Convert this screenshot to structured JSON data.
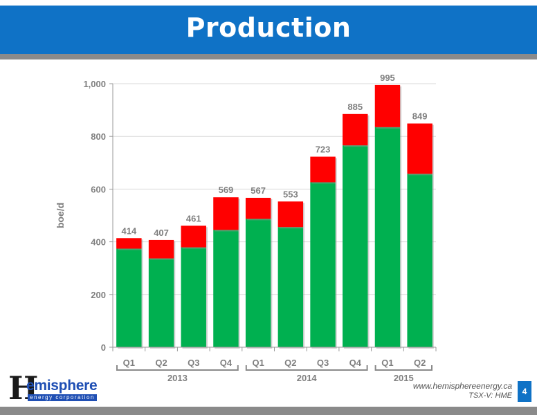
{
  "header": {
    "title": "Production"
  },
  "footer": {
    "website": "www.hemisphereenergy.ca",
    "ticker": "TSX-V: HME",
    "page_number": "4"
  },
  "logo": {
    "mark": "H",
    "word": "emisphere",
    "subtitle": "energy corporation"
  },
  "colors": {
    "title_bar": "#0f72c6",
    "base_series": "#00b050",
    "top_series": "#ff0000",
    "axis_text": "#7f7f7f"
  },
  "chart_data": {
    "type": "bar",
    "stacked": true,
    "ylabel": "boe/d",
    "ylim": [
      0,
      1000
    ],
    "yticks": [
      0,
      200,
      400,
      600,
      800,
      1000
    ],
    "ytick_labels": [
      "0",
      "200",
      "400",
      "600",
      "800",
      "1,000"
    ],
    "grid": true,
    "categories": [
      "Q1",
      "Q2",
      "Q3",
      "Q4",
      "Q1",
      "Q2",
      "Q3",
      "Q4",
      "Q1",
      "Q2"
    ],
    "groups": [
      {
        "label": "2013",
        "start": 0,
        "end": 3
      },
      {
        "label": "2014",
        "start": 4,
        "end": 7
      },
      {
        "label": "2015",
        "start": 8,
        "end": 9
      }
    ],
    "series": [
      {
        "color": "#00b050",
        "values": [
          374,
          337,
          379,
          445,
          487,
          456,
          626,
          766,
          835,
          658
        ]
      },
      {
        "color": "#ff0000",
        "values": [
          40,
          70,
          82,
          124,
          80,
          97,
          97,
          119,
          160,
          191
        ]
      }
    ],
    "totals": [
      414,
      407,
      461,
      569,
      567,
      553,
      723,
      885,
      995,
      849
    ],
    "total_labels": [
      "414",
      "407",
      "461",
      "569",
      "567",
      "553",
      "723",
      "885",
      "995",
      "849"
    ]
  }
}
